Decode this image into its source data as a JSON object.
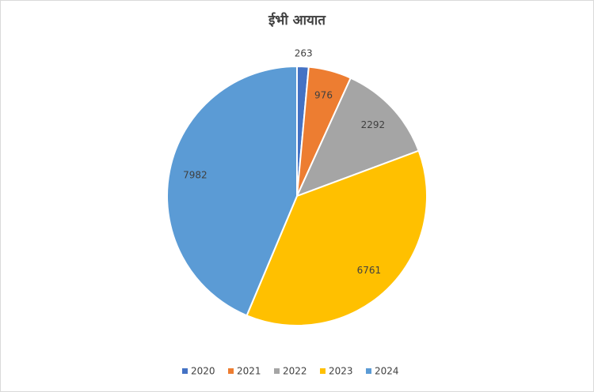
{
  "chart_data": {
    "type": "pie",
    "title": "ईभी आयात",
    "categories": [
      "2020",
      "2021",
      "2022",
      "2023",
      "2024"
    ],
    "values": [
      263,
      976,
      2292,
      6761,
      7982
    ],
    "colors": [
      "#4472c4",
      "#ed7d31",
      "#a5a5a5",
      "#ffc000",
      "#5b9bd5"
    ],
    "legend": "bottom"
  }
}
